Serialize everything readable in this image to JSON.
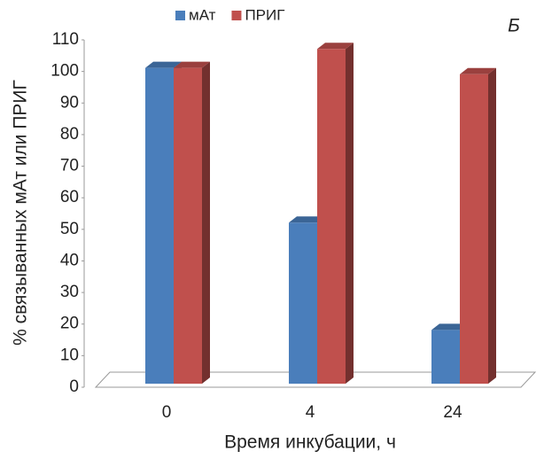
{
  "chart_data": {
    "type": "bar3d",
    "annotation": "Б",
    "y_label": "% связыванных мАт или ПРИГ",
    "x_label": "Время инкубации, ч",
    "categories": [
      "0",
      "4",
      "24"
    ],
    "series": [
      {
        "name": "мАт",
        "color": "#4a7ebb",
        "values": [
          100,
          51,
          17
        ]
      },
      {
        "name": "ПРИГ",
        "color": "#c0504d",
        "values": [
          100,
          106,
          98
        ]
      }
    ],
    "ylim": [
      0,
      110
    ],
    "yticks": [
      0,
      10,
      20,
      30,
      40,
      50,
      60,
      70,
      80,
      90,
      100,
      110
    ],
    "legend": "top"
  }
}
